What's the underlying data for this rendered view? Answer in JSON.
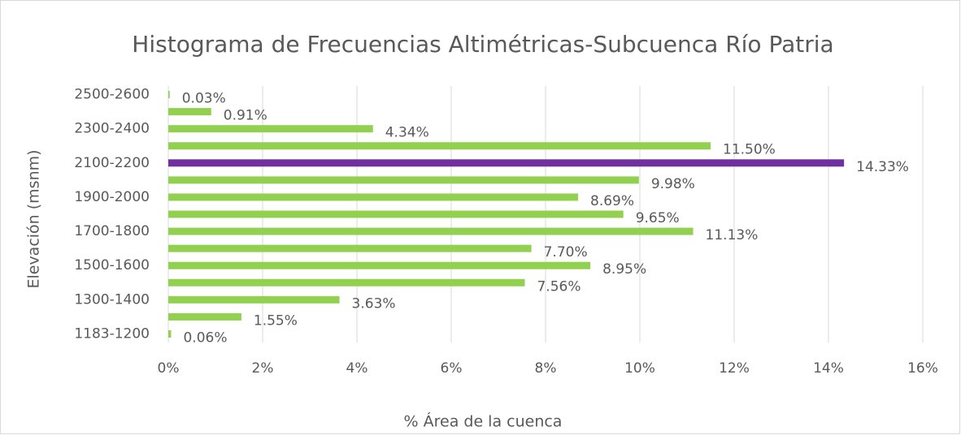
{
  "chart_data": {
    "type": "hbar",
    "title": "Histograma de Frecuencias Altimétricas-Subcuenca Río Patria",
    "x_label": "% Área de la cuenca",
    "y_label": "Elevación (msnm)",
    "categories": [
      "1183-1200",
      null,
      "1300-1400",
      null,
      "1500-1600",
      null,
      "1700-1800",
      null,
      "1900-2000",
      null,
      "2100-2200",
      null,
      "2300-2400",
      null,
      "2500-2600"
    ],
    "values": [
      0.06,
      1.55,
      3.63,
      7.56,
      8.95,
      7.7,
      11.13,
      9.65,
      8.69,
      9.98,
      14.33,
      11.5,
      4.34,
      0.91,
      0.03
    ],
    "value_labels": [
      "0.06%",
      "1.55%",
      "3.63%",
      "7.56%",
      "8.95%",
      "7.70%",
      "11.13%",
      "9.65%",
      "8.69%",
      "9.98%",
      "14.33%",
      "11.50%",
      "4.34%",
      "0.91%",
      "0.03%"
    ],
    "colors": [
      "#92d050",
      "#92d050",
      "#92d050",
      "#92d050",
      "#92d050",
      "#92d050",
      "#92d050",
      "#92d050",
      "#92d050",
      "#92d050",
      "#7030a0",
      "#92d050",
      "#92d050",
      "#92d050",
      "#92d050"
    ],
    "xlim": [
      0,
      16
    ],
    "xticks": [
      {
        "value": 0,
        "label": "0%"
      },
      {
        "value": 2,
        "label": "2%"
      },
      {
        "value": 4,
        "label": "4%"
      },
      {
        "value": 6,
        "label": "6%"
      },
      {
        "value": 8,
        "label": "8%"
      },
      {
        "value": 10,
        "label": "10%"
      },
      {
        "value": 12,
        "label": "12%"
      },
      {
        "value": 14,
        "label": "14%"
      },
      {
        "value": 16,
        "label": "16%"
      }
    ],
    "grid": true
  }
}
